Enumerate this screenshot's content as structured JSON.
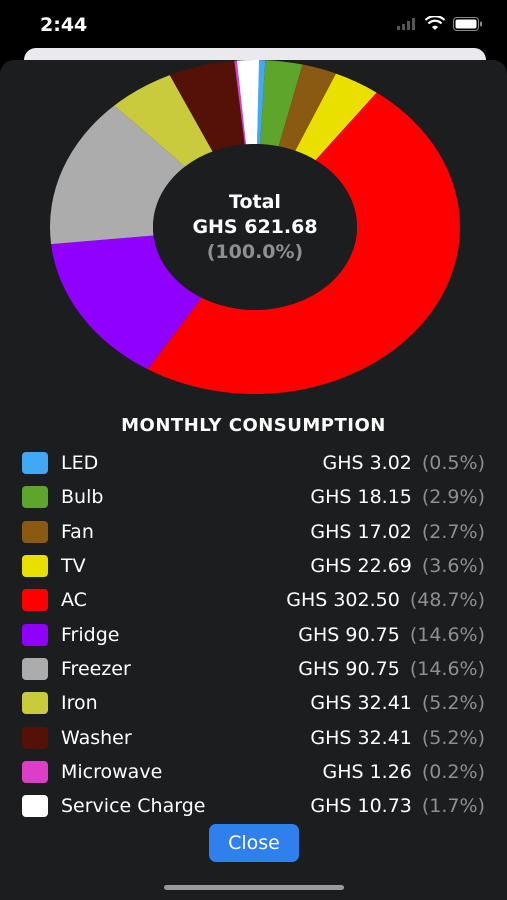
{
  "status": {
    "time": "2:44"
  },
  "chart_data": {
    "type": "pie",
    "title": "MONTHLY CONSUMPTION",
    "center": {
      "label": "Total",
      "value": "GHS 621.68",
      "percent": "(100.0%)"
    },
    "slices": [
      {
        "name": "LED",
        "amount": "GHS 3.02",
        "percent": "(0.5%)",
        "value": 3.02,
        "color": "#3fa9f5"
      },
      {
        "name": "Bulb",
        "amount": "GHS 18.15",
        "percent": "(2.9%)",
        "value": 18.15,
        "color": "#5ea52c"
      },
      {
        "name": "Fan",
        "amount": "GHS 17.02",
        "percent": "(2.7%)",
        "value": 17.02,
        "color": "#8a5a12"
      },
      {
        "name": "TV",
        "amount": "GHS 22.69",
        "percent": "(3.6%)",
        "value": 22.69,
        "color": "#eae000"
      },
      {
        "name": "AC",
        "amount": "GHS 302.50",
        "percent": "(48.7%)",
        "value": 302.5,
        "color": "#ff0000"
      },
      {
        "name": "Fridge",
        "amount": "GHS 90.75",
        "percent": "(14.6%)",
        "value": 90.75,
        "color": "#8f00ff"
      },
      {
        "name": "Freezer",
        "amount": "GHS 90.75",
        "percent": "(14.6%)",
        "value": 90.75,
        "color": "#acacac"
      },
      {
        "name": "Iron",
        "amount": "GHS 32.41",
        "percent": "(5.2%)",
        "value": 32.41,
        "color": "#c9cb3c"
      },
      {
        "name": "Washer",
        "amount": "GHS 32.41",
        "percent": "(5.2%)",
        "value": 32.41,
        "color": "#551108"
      },
      {
        "name": "Microwave",
        "amount": "GHS 1.26",
        "percent": "(0.2%)",
        "value": 1.26,
        "color": "#db3fc7"
      },
      {
        "name": "Service Charge",
        "amount": "GHS 10.73",
        "percent": "(1.7%)",
        "value": 10.73,
        "color": "#ffffff"
      }
    ]
  },
  "close_label": "Close"
}
